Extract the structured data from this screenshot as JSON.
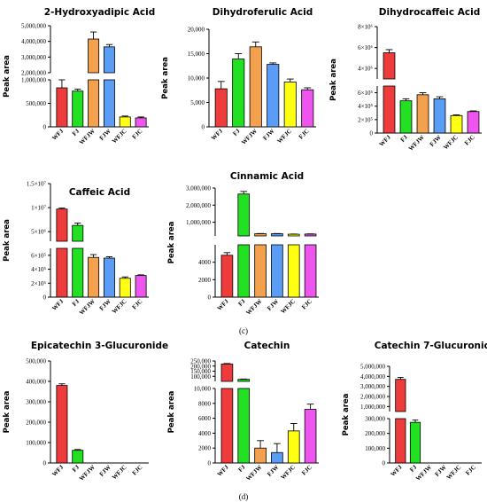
{
  "colors": {
    "WFJ": "#ee3b3b",
    "FJ": "#22e022",
    "WFJW": "#f4a14d",
    "FJW": "#5a9df6",
    "WFJC": "#ffff14",
    "FJC": "#ee55ee"
  },
  "panel_labels": [
    "(c)",
    "(d)"
  ],
  "chart_data": [
    {
      "type": "bar",
      "title": "2-Hydroxyadipic Acid",
      "ylabel": "Peak area",
      "categories": [
        "WFJ",
        "FJ",
        "WFJW",
        "FJW",
        "WFJC",
        "FJC"
      ],
      "values": [
        830000,
        760000,
        4150000,
        3650000,
        210000,
        190000
      ],
      "errors": [
        180000,
        40000,
        450000,
        150000,
        20000,
        20000
      ],
      "broken_axis": true,
      "lower_ylim": [
        0,
        1000000
      ],
      "upper_ylim": [
        2000000,
        5000000
      ],
      "lower_ticks": [
        "0",
        "500,000",
        "1,000,000"
      ],
      "upper_ticks": [
        "2,000,000",
        "3,000,000",
        "4,000,000",
        "5,000,000"
      ]
    },
    {
      "type": "bar",
      "title": "Dihydroferulic Acid",
      "ylabel": "Peak area",
      "categories": [
        "WFJ",
        "FJ",
        "WFJW",
        "FJW",
        "WFJC",
        "FJC"
      ],
      "values": [
        7800,
        13900,
        16400,
        12800,
        9200,
        7600
      ],
      "errors": [
        1500,
        1100,
        1000,
        300,
        600,
        400
      ],
      "broken_axis": false,
      "ylim": [
        0,
        20000
      ],
      "ticks": [
        "0",
        "5,000",
        "10,000",
        "15,000",
        "20,000"
      ]
    },
    {
      "type": "bar",
      "title": "Dihydrocaffeic Acid",
      "ylabel": "Peak area",
      "categories": [
        "WFJ",
        "FJ",
        "WFJW",
        "FJW",
        "WFJC",
        "FJC"
      ],
      "values": [
        5500000,
        480000,
        570000,
        510000,
        260000,
        320000
      ],
      "errors": [
        300000,
        30000,
        30000,
        30000,
        10000,
        10000
      ],
      "broken_axis": true,
      "lower_ylim": [
        0,
        700000
      ],
      "upper_ylim": [
        3000000,
        8000000
      ],
      "lower_ticks": [
        "0",
        "2×10⁵",
        "4×10⁵",
        "6×10⁵"
      ],
      "upper_ticks": [
        "4×10⁶",
        "6×10⁶",
        "8×10⁶"
      ]
    },
    {
      "type": "bar",
      "title": "Caffeic Acid",
      "ylabel": "Peak area",
      "categories": [
        "WFJ",
        "FJ",
        "WFJW",
        "FJW",
        "WFJC",
        "FJC"
      ],
      "values": [
        9700000,
        6300000,
        570000,
        560000,
        270000,
        310000
      ],
      "errors": [
        200000,
        500000,
        40000,
        20000,
        20000,
        10000
      ],
      "broken_axis": true,
      "lower_ylim": [
        0,
        700000
      ],
      "upper_ylim": [
        3000000,
        15000000
      ],
      "lower_ticks": [
        "0",
        "2×10⁵",
        "4×10⁵",
        "6×10⁵"
      ],
      "upper_ticks": [
        "5×10⁶",
        "1×10⁷",
        "1.5×10⁷"
      ]
    },
    {
      "type": "bar",
      "title": "Cinnamic Acid",
      "ylabel": "Peak area",
      "categories": [
        "WFJ",
        "FJ",
        "WFJW",
        "FJW",
        "WFJC",
        "FJC"
      ],
      "values": [
        4800,
        2650000,
        330000,
        330000,
        300000,
        310000
      ],
      "errors": [
        300,
        150000,
        10000,
        10000,
        10000,
        10000
      ],
      "broken_axis": true,
      "lower_ylim": [
        0,
        6000
      ],
      "upper_ylim": [
        200000,
        3000000
      ],
      "lower_ticks": [
        "0",
        "2000",
        "4000"
      ],
      "upper_ticks": [
        "1,000,000",
        "2,000,000",
        "3,000,000"
      ]
    },
    {
      "type": "bar",
      "title": "Epicatechin 3-Glucuronide",
      "ylabel": "Peak area",
      "categories": [
        "WFJ",
        "FJ",
        "WFJW",
        "FJW",
        "WFJC",
        "FJC"
      ],
      "values": [
        380000,
        62000,
        0,
        0,
        0,
        0
      ],
      "errors": [
        8000,
        4000,
        0,
        0,
        0,
        0
      ],
      "broken_axis": false,
      "ylim": [
        0,
        500000
      ],
      "ticks": [
        "0",
        "100,000",
        "200,000",
        "300,000",
        "400,000",
        "500,000"
      ]
    },
    {
      "type": "bar",
      "title": "Catechin",
      "ylabel": "Peak area",
      "categories": [
        "WFJ",
        "FJ",
        "WFJW",
        "FJW",
        "WFJC",
        "FJC"
      ],
      "values": [
        220000,
        70000,
        2000,
        1400,
        4300,
        7200
      ],
      "errors": [
        5000,
        3000,
        1000,
        1200,
        1000,
        700
      ],
      "broken_axis": true,
      "lower_ylim": [
        0,
        10000
      ],
      "upper_ylim": [
        50000,
        250000
      ],
      "lower_ticks": [
        "0",
        "2000",
        "4000",
        "6000",
        "8000",
        "10,000"
      ],
      "upper_ticks": [
        "100,000",
        "150,000",
        "200,000",
        "250,000"
      ]
    },
    {
      "type": "bar",
      "title": "Catechin 7-Glucuronide",
      "ylabel": "Peak area",
      "categories": [
        "WFJ",
        "FJ",
        "WFJW",
        "FJW",
        "WFJC",
        "FJC"
      ],
      "values": [
        3700000,
        275000,
        0,
        0,
        0,
        0
      ],
      "errors": [
        200000,
        15000,
        0,
        0,
        0,
        0
      ],
      "broken_axis": true,
      "lower_ylim": [
        0,
        300000
      ],
      "upper_ylim": [
        500000,
        5000000
      ],
      "lower_ticks": [
        "0",
        "100,000",
        "200,000",
        "300,000"
      ],
      "upper_ticks": [
        "1,000,000",
        "2,000,000",
        "3,000,000",
        "4,000,000",
        "5,000,000"
      ]
    }
  ]
}
